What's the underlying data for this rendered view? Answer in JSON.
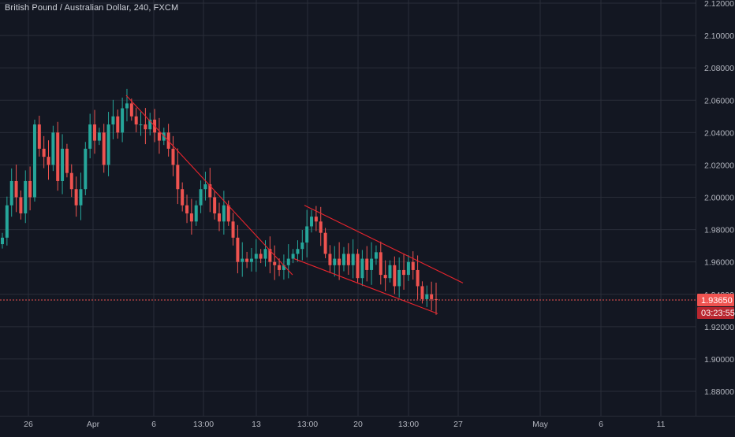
{
  "header": {
    "title": "British Pound / Australian Dollar, 240, FXCM"
  },
  "price_axis": {
    "ticks": [
      "2.12000",
      "2.10000",
      "2.08000",
      "2.06000",
      "2.04000",
      "2.02000",
      "2.00000",
      "1.98000",
      "1.96000",
      "1.94000",
      "1.92000",
      "1.90000",
      "1.88000"
    ]
  },
  "time_axis": {
    "ticks": [
      "26",
      "Apr",
      "6",
      "13:00",
      "13",
      "13:00",
      "20",
      "13:00",
      "27",
      "May",
      "6",
      "11"
    ]
  },
  "last_price": {
    "price_label": "1.93650",
    "countdown_label": "03:23:55",
    "value": 1.9365
  },
  "colors": {
    "background": "#131722",
    "grid": "#2a2e39",
    "up": "#26a69a",
    "down": "#ef5350",
    "trendline": "#e8242d",
    "text": "#b2b5be"
  },
  "chart_data": {
    "type": "candlestick",
    "title": "British Pound / Australian Dollar, 240, FXCM",
    "y_range": [
      1.865,
      2.123
    ],
    "x_tick_labels": [
      "26",
      "Apr",
      "6",
      "13:00",
      "13",
      "13:00",
      "20",
      "13:00",
      "27",
      "May",
      "6",
      "11"
    ],
    "y_tick_labels": [
      "2.12000",
      "2.10000",
      "2.08000",
      "2.06000",
      "2.04000",
      "2.02000",
      "2.00000",
      "1.98000",
      "1.96000",
      "1.94000",
      "1.92000",
      "1.90000",
      "1.88000"
    ],
    "close_path": [
      1.975,
      1.995,
      2.01,
      2.0,
      1.99,
      2.01,
      2.0,
      2.045,
      2.03,
      2.025,
      2.02,
      2.04,
      2.01,
      2.03,
      2.015,
      2.005,
      1.995,
      2.005,
      2.03,
      2.045,
      2.035,
      2.04,
      2.02,
      2.045,
      2.05,
      2.04,
      2.055,
      2.058,
      2.05,
      2.045,
      2.045,
      2.042,
      2.048,
      2.04,
      2.035,
      2.04,
      2.03,
      2.02,
      2.005,
      1.995,
      1.99,
      1.985,
      1.995,
      2.005,
      2.008,
      2.0,
      1.99,
      1.985,
      1.995,
      1.985,
      1.975,
      1.96,
      1.962,
      1.96,
      1.962,
      1.965,
      1.962,
      1.968,
      1.96,
      1.958,
      1.955,
      1.958,
      1.962,
      1.965,
      1.968,
      1.972,
      1.982,
      1.988,
      1.985,
      1.978,
      1.965,
      1.958,
      1.962,
      1.958,
      1.965,
      1.958,
      1.965,
      1.95,
      1.962,
      1.955,
      1.962,
      1.966,
      1.952,
      1.95,
      1.958,
      1.945,
      1.955,
      1.952,
      1.96,
      1.955,
      1.945,
      1.937,
      1.94,
      1.937,
      1.9365
    ],
    "trendlines": [
      {
        "from": [
          "6 (approx.)",
          2.063
        ],
        "to": [
          "13 (approx.)",
          1.952
        ]
      },
      {
        "from": [
          "13:00 (approx.)",
          1.995
        ],
        "to": [
          "27 (approx.)",
          1.947
        ]
      },
      {
        "from": [
          "13:00 (approx.)",
          1.962
        ],
        "to": [
          "27 (approx.)",
          1.928
        ]
      }
    ],
    "last_price": 1.9365,
    "grid": true
  }
}
